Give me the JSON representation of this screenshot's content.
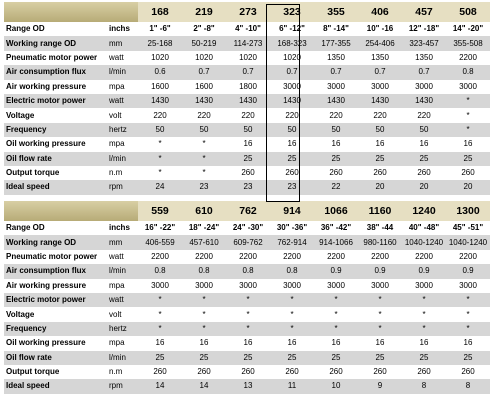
{
  "table1": {
    "models": [
      "168",
      "219",
      "273",
      "323",
      "355",
      "406",
      "457",
      "508"
    ],
    "range_row": {
      "label": "Range       OD",
      "unit": "inchs",
      "values": [
        "1\" -6\"",
        "2\" -8\"",
        "4\" -10\"",
        "6\" -12\"",
        "8\" -14\"",
        "10\" -16",
        "12\" -18\"",
        "14\" -20\""
      ]
    },
    "rows": [
      {
        "label": "Working range OD",
        "unit": "mm",
        "values": [
          "25-168",
          "50-219",
          "114-273",
          "168-323",
          "177-355",
          "254-406",
          "323-457",
          "355-508"
        ]
      },
      {
        "label": "Pneumatic motor power",
        "unit": "watt",
        "values": [
          "1020",
          "1020",
          "1020",
          "1020",
          "1350",
          "1350",
          "1350",
          "2200"
        ]
      },
      {
        "label": "Air consumption flux",
        "unit": "l/min",
        "values": [
          "0.6",
          "0.7",
          "0.7",
          "0.7",
          "0.7",
          "0.7",
          "0.7",
          "0.8"
        ]
      },
      {
        "label": "Air working pressure",
        "unit": "mpa",
        "values": [
          "1600",
          "1600",
          "1800",
          "3000",
          "3000",
          "3000",
          "3000",
          "3000"
        ]
      },
      {
        "label": "Electric motor power",
        "unit": "watt",
        "values": [
          "1430",
          "1430",
          "1430",
          "1430",
          "1430",
          "1430",
          "1430",
          "*"
        ]
      },
      {
        "label": "Voltage",
        "unit": "volt",
        "values": [
          "220",
          "220",
          "220",
          "220",
          "220",
          "220",
          "220",
          "*"
        ]
      },
      {
        "label": "Frequency",
        "unit": "hertz",
        "values": [
          "50",
          "50",
          "50",
          "50",
          "50",
          "50",
          "50",
          "*"
        ]
      },
      {
        "label": "Oil working pressure",
        "unit": "mpa",
        "values": [
          "*",
          "*",
          "16",
          "16",
          "16",
          "16",
          "16",
          "16"
        ]
      },
      {
        "label": "Oil flow rate",
        "unit": "l/min",
        "values": [
          "*",
          "*",
          "25",
          "25",
          "25",
          "25",
          "25",
          "25"
        ]
      },
      {
        "label": "Output  torque",
        "unit": "n.m",
        "values": [
          "*",
          "*",
          "260",
          "260",
          "260",
          "260",
          "260",
          "260"
        ]
      },
      {
        "label": "Ideal speed",
        "unit": "rpm",
        "values": [
          "24",
          "23",
          "23",
          "23",
          "22",
          "20",
          "20",
          "20"
        ]
      }
    ]
  },
  "table2": {
    "models": [
      "559",
      "610",
      "762",
      "914",
      "1066",
      "1160",
      "1240",
      "1300"
    ],
    "range_row": {
      "label": "Range       OD",
      "unit": "inchs",
      "values": [
        "16\" -22\"",
        "18\" -24\"",
        "24\" -30\"",
        "30\" -36\"",
        "36\" -42\"",
        "38\" -44",
        "40\" -48\"",
        "45\" -51\""
      ]
    },
    "rows": [
      {
        "label": "Working  range  OD",
        "unit": "mm",
        "values": [
          "406-559",
          "457-610",
          "609-762",
          "762-914",
          "914-1066",
          "980-1160",
          "1040-1240",
          "1040-1240"
        ]
      },
      {
        "label": "Pneumatic motor power",
        "unit": "watt",
        "values": [
          "2200",
          "2200",
          "2200",
          "2200",
          "2200",
          "2200",
          "2200",
          "2200"
        ]
      },
      {
        "label": "Air consumption flux",
        "unit": "l/min",
        "values": [
          "0.8",
          "0.8",
          "0.8",
          "0.8",
          "0.9",
          "0.9",
          "0.9",
          "0.9"
        ]
      },
      {
        "label": "Air working pressure",
        "unit": "mpa",
        "values": [
          "3000",
          "3000",
          "3000",
          "3000",
          "3000",
          "3000",
          "3000",
          "3000"
        ]
      },
      {
        "label": "Electric motor power",
        "unit": "watt",
        "values": [
          "*",
          "*",
          "*",
          "*",
          "*",
          "*",
          "*",
          "*"
        ]
      },
      {
        "label": "Voltage",
        "unit": "volt",
        "values": [
          "*",
          "*",
          "*",
          "*",
          "*",
          "*",
          "*",
          "*"
        ]
      },
      {
        "label": "Frequency",
        "unit": "hertz",
        "values": [
          "*",
          "*",
          "*",
          "*",
          "*",
          "*",
          "*",
          "*"
        ]
      },
      {
        "label": "Oil working pressure",
        "unit": "mpa",
        "values": [
          "16",
          "16",
          "16",
          "16",
          "16",
          "16",
          "16",
          "16"
        ]
      },
      {
        "label": "Oil flow rate",
        "unit": "l/min",
        "values": [
          "25",
          "25",
          "25",
          "25",
          "25",
          "25",
          "25",
          "25"
        ]
      },
      {
        "label": "Output  torque",
        "unit": "n.m",
        "values": [
          "260",
          "260",
          "260",
          "260",
          "260",
          "260",
          "260",
          "260"
        ]
      },
      {
        "label": "Ideal speed",
        "unit": "rpm",
        "values": [
          "14",
          "14",
          "13",
          "11",
          "10",
          "9",
          "8",
          "8"
        ]
      }
    ]
  },
  "highlighted_model": "323"
}
